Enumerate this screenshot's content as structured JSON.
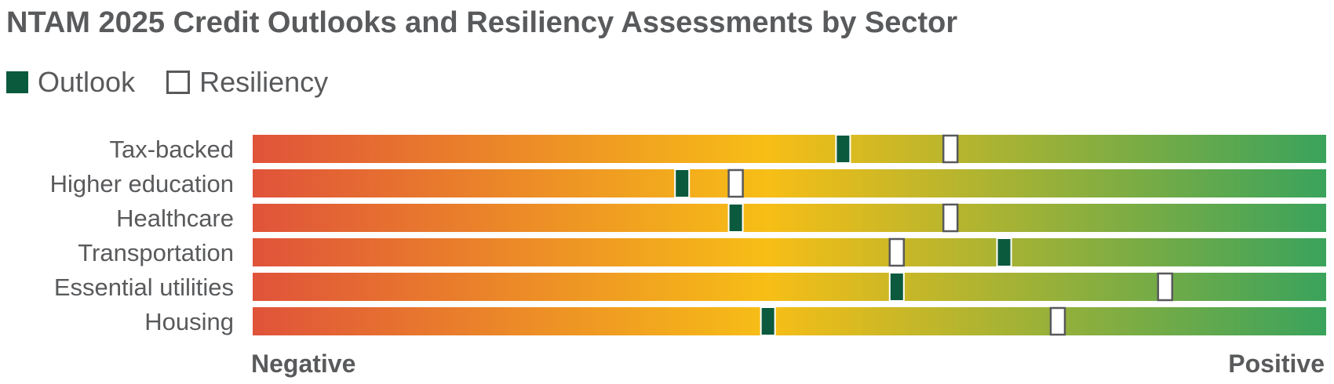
{
  "title": "NTAM 2025 Credit Outlooks and Resiliency Assessments by Sector",
  "legend": {
    "outlook": "Outlook",
    "resiliency": "Resiliency"
  },
  "colors": {
    "negative": "#e0533a",
    "mid": "#f7be16",
    "positive": "#3aa35c",
    "outlook_marker": "#0c5a3d",
    "resiliency_border": "#58595b"
  },
  "chart_data": {
    "type": "bar",
    "title": "NTAM 2025 Credit Outlooks and Resiliency Assessments by Sector",
    "categories": [
      "Tax-backed",
      "Higher education",
      "Healthcare",
      "Transportation",
      "Essential utilities",
      "Housing"
    ],
    "series": [
      {
        "name": "Outlook",
        "values": [
          0.55,
          0.4,
          0.45,
          0.7,
          0.6,
          0.48
        ]
      },
      {
        "name": "Resiliency",
        "values": [
          0.65,
          0.45,
          0.65,
          0.6,
          0.85,
          0.75
        ]
      }
    ],
    "xlim": [
      0,
      1
    ],
    "scale_labels": {
      "low": "Negative",
      "high": "Positive"
    },
    "legend_position": "top-left",
    "grid": false
  }
}
